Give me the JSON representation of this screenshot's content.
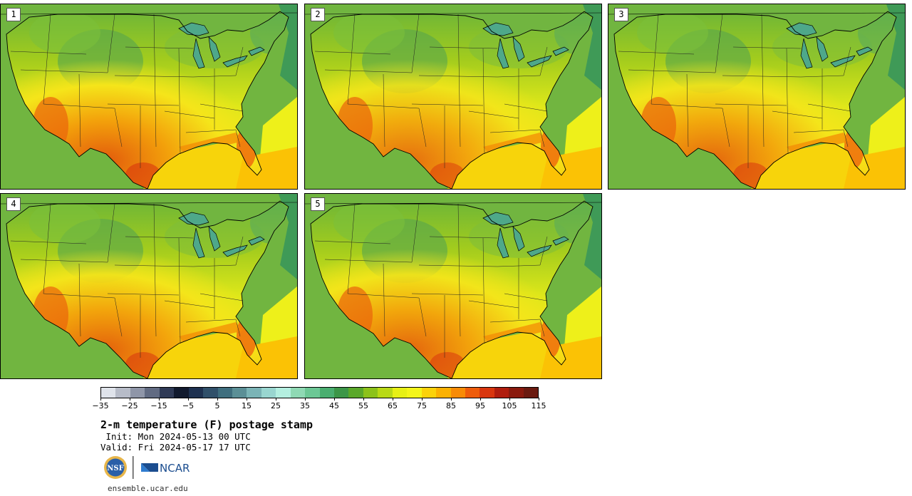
{
  "panels": [
    {
      "label": "1",
      "warm": 1.0
    },
    {
      "label": "2",
      "warm": 0.85
    },
    {
      "label": "3",
      "warm": 0.9
    },
    {
      "label": "4",
      "warm": 0.95
    },
    {
      "label": "5",
      "warm": 0.92
    }
  ],
  "colorbar": {
    "colors": [
      "#dfe3ea",
      "#b7bcc8",
      "#8f96a8",
      "#616b82",
      "#2f3a56",
      "#111a2e",
      "#1e3150",
      "#30506a",
      "#3f6e7e",
      "#5b8f96",
      "#7bb4b6",
      "#99d6d0",
      "#b4efe0",
      "#8fd9b4",
      "#6cc795",
      "#4aae70",
      "#3c9648",
      "#5aa82a",
      "#8cc21a",
      "#b9d916",
      "#e7f015",
      "#f4f51a",
      "#fbd20a",
      "#fbb102",
      "#f88b06",
      "#ee5c0b",
      "#d9360e",
      "#b01d0e",
      "#8a1a0e",
      "#6a1a10"
    ],
    "tick_labels": [
      "−35",
      "−25",
      "−15",
      "−5",
      "5",
      "15",
      "25",
      "35",
      "45",
      "55",
      "65",
      "75",
      "85",
      "95",
      "105",
      "115"
    ]
  },
  "title": "2-m temperature (F) postage stamp",
  "init": " Init: Mon 2024-05-13 00 UTC",
  "valid": "Valid: Fri 2024-05-17 17 UTC",
  "logos": {
    "nsf": "NSF",
    "ncar": "NCAR"
  },
  "site": "ensemble.ucar.edu"
}
